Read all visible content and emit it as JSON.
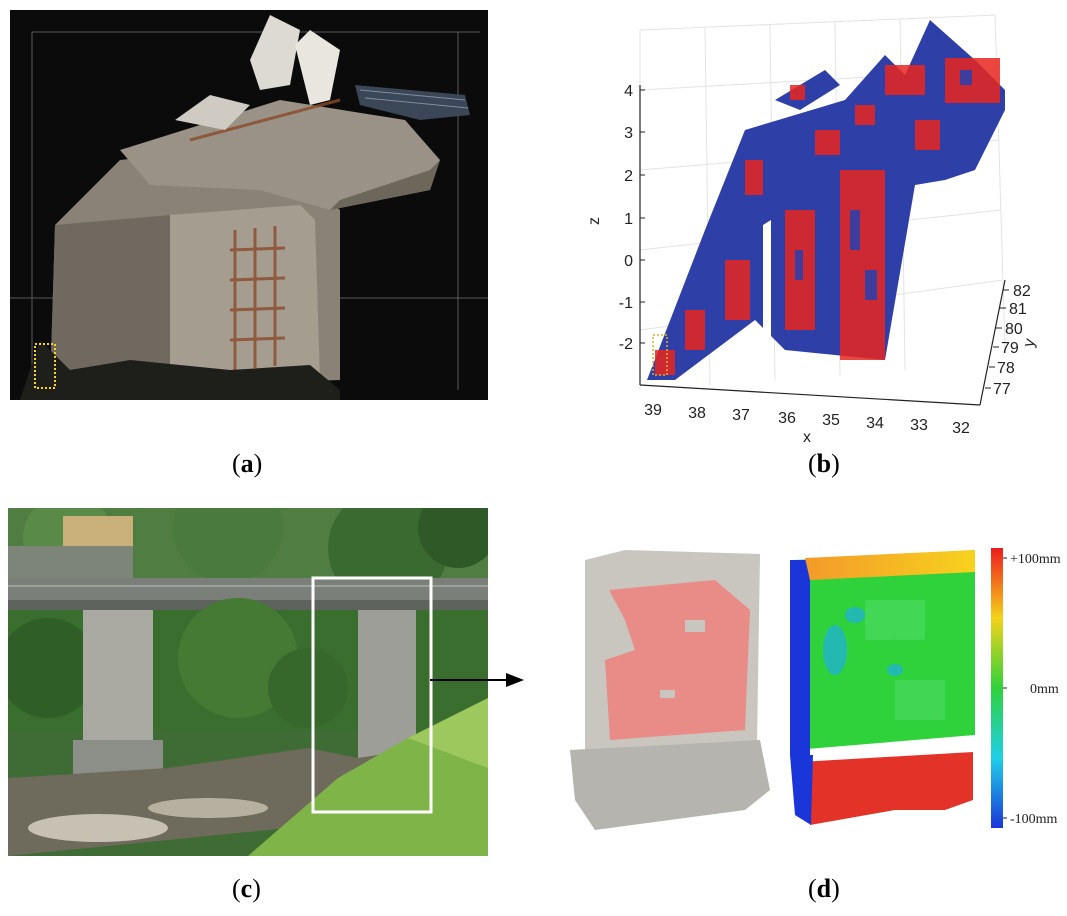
{
  "panels": [
    {
      "id": "a",
      "caption": "a"
    },
    {
      "id": "b",
      "caption": "b"
    },
    {
      "id": "c",
      "caption": "c"
    },
    {
      "id": "d",
      "caption": "d"
    }
  ],
  "plot_b": {
    "z_axis_label": "z",
    "x_axis_label": "x",
    "y_axis_label": "y",
    "z_ticks": [
      "4",
      "3",
      "2",
      "1",
      "0",
      "-1",
      "-2"
    ],
    "x_ticks": [
      "39",
      "38",
      "37",
      "36",
      "35",
      "34",
      "33",
      "32"
    ],
    "y_ticks": [
      "82",
      "81",
      "80",
      "79",
      "78",
      "77"
    ],
    "colors": {
      "blue": "#2f3fa8",
      "red": "#e8261f"
    }
  },
  "colorbar": {
    "top_label": "+100mm",
    "mid_label": "0mm",
    "bottom_label": "-100mm"
  },
  "colors": {
    "pink_overlay": "#e98c87",
    "concrete": "#c9c6bf",
    "red_base": "#e33228"
  }
}
